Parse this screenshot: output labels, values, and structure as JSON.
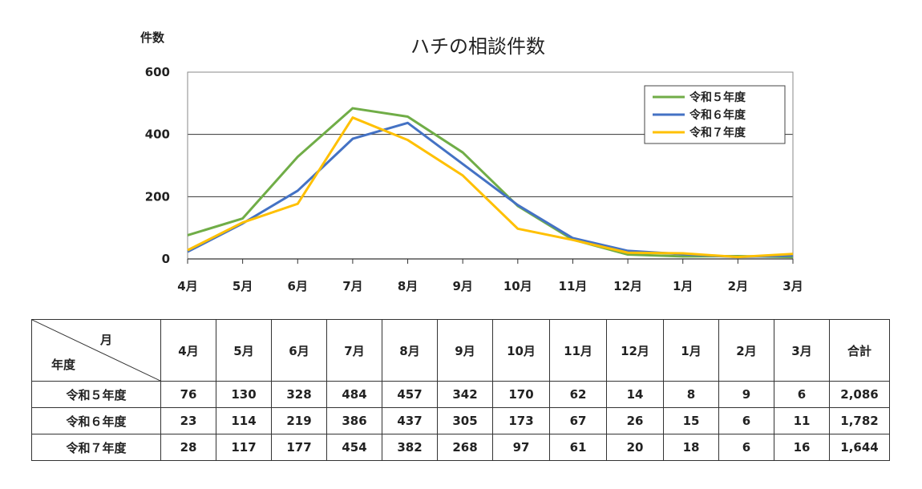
{
  "chart_data": {
    "type": "line",
    "title": "ハチの相談件数",
    "ylabel": "件数",
    "xlabel": "",
    "categories": [
      "4月",
      "5月",
      "6月",
      "7月",
      "8月",
      "9月",
      "10月",
      "11月",
      "12月",
      "1月",
      "2月",
      "3月"
    ],
    "ylim": [
      0,
      600
    ],
    "yticks": [
      0,
      200,
      400,
      600
    ],
    "grid": "horizontal",
    "legend_position": "top-right",
    "series": [
      {
        "name": "令和５年度",
        "color": "#70ad47",
        "values": [
          76,
          130,
          328,
          484,
          457,
          342,
          170,
          62,
          14,
          8,
          9,
          6
        ]
      },
      {
        "name": "令和６年度",
        "color": "#4472c4",
        "values": [
          23,
          114,
          219,
          386,
          437,
          305,
          173,
          67,
          26,
          15,
          6,
          11
        ]
      },
      {
        "name": "令和７年度",
        "color": "#ffc000",
        "values": [
          28,
          117,
          177,
          454,
          382,
          268,
          97,
          61,
          20,
          18,
          6,
          16
        ]
      }
    ]
  },
  "table": {
    "corner_month": "月",
    "corner_year": "年度",
    "total_label": "合計",
    "rows": [
      {
        "label": "令和５年度",
        "values": [
          "76",
          "130",
          "328",
          "484",
          "457",
          "342",
          "170",
          "62",
          "14",
          "8",
          "9",
          "6"
        ],
        "total": "2,086"
      },
      {
        "label": "令和６年度",
        "values": [
          "23",
          "114",
          "219",
          "386",
          "437",
          "305",
          "173",
          "67",
          "26",
          "15",
          "6",
          "11"
        ],
        "total": "1,782"
      },
      {
        "label": "令和７年度",
        "values": [
          "28",
          "117",
          "177",
          "454",
          "382",
          "268",
          "97",
          "61",
          "20",
          "18",
          "6",
          "16"
        ],
        "total": "1,644"
      }
    ]
  }
}
